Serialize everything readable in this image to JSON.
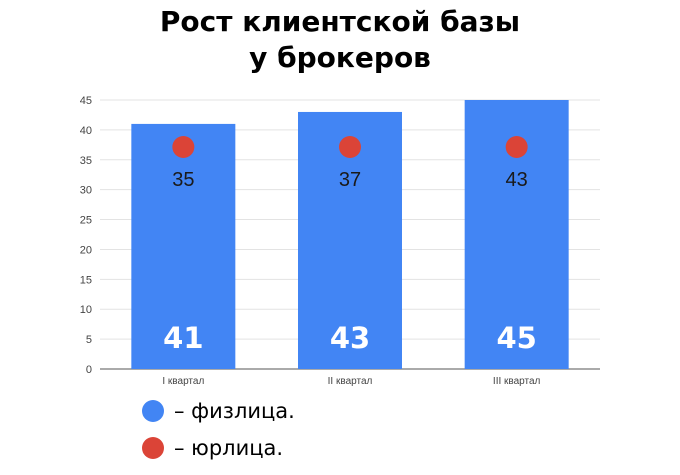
{
  "title": {
    "line1": "Рост клиентской базы",
    "line2": "у брокеров"
  },
  "chart_data": {
    "type": "bar",
    "categories": [
      "I квартал",
      "II квартал",
      "III квартал"
    ],
    "series": [
      {
        "name": "физлица",
        "values": [
          41,
          43,
          45
        ],
        "color": "#4285f4"
      },
      {
        "name": "юрлица",
        "values": [
          35,
          37,
          43
        ],
        "color": "#db4437"
      }
    ],
    "ylim": [
      0,
      45
    ],
    "yticks": [
      0,
      5,
      10,
      15,
      20,
      25,
      30,
      35,
      40,
      45
    ],
    "grid": true,
    "legend_position": "bottom-left"
  },
  "legend": [
    {
      "label": "– физлица.",
      "color": "#4285f4"
    },
    {
      "label": "– юрлица.",
      "color": "#db4437"
    }
  ]
}
